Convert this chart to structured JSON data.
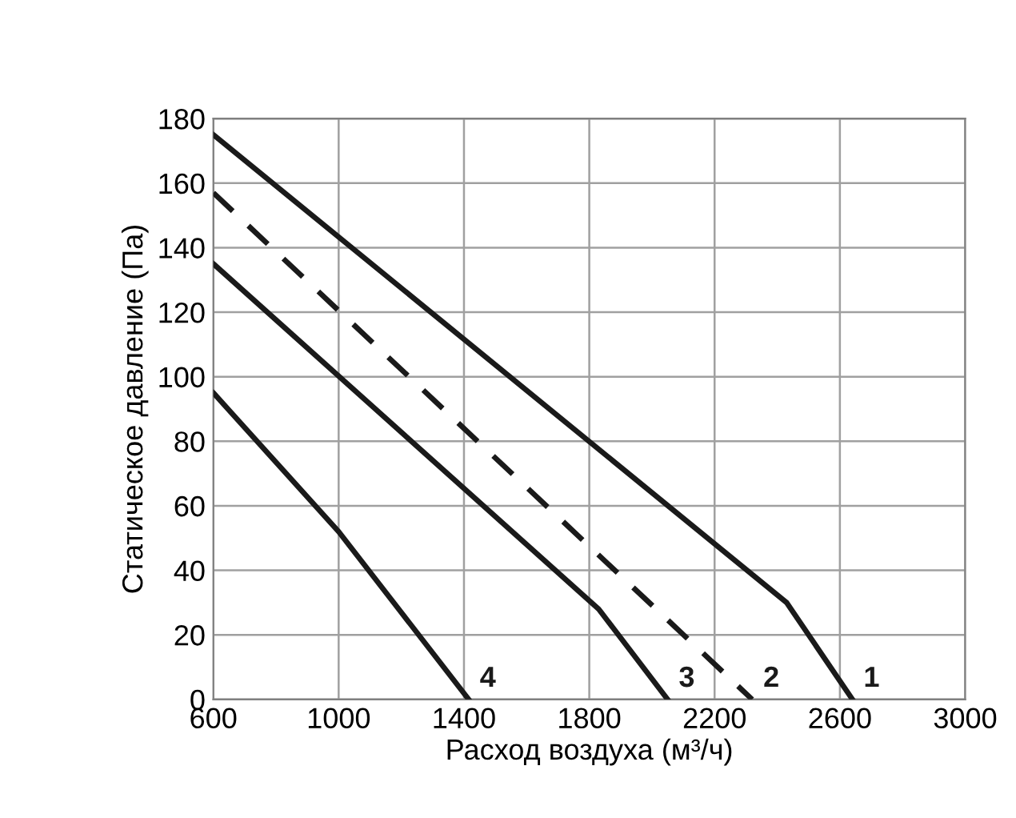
{
  "chart_data": {
    "type": "line",
    "xlabel": "Расход воздуха (м³/ч)",
    "ylabel": "Статическое давление (Па)",
    "series": [
      {
        "name": "1",
        "x": [
          600,
          2430,
          2640
        ],
        "values": [
          175,
          30,
          0
        ],
        "color": "#1a1a1a",
        "line_style": "solid"
      },
      {
        "name": "2",
        "x": [
          600,
          2320
        ],
        "values": [
          157,
          0
        ],
        "color": "#1a1a1a",
        "line_style": "dashed"
      },
      {
        "name": "3",
        "x": [
          600,
          1830,
          2050
        ],
        "values": [
          135,
          28,
          0
        ],
        "color": "#1a1a1a",
        "line_style": "solid"
      },
      {
        "name": "4",
        "x": [
          600,
          1000,
          1415
        ],
        "values": [
          95,
          52,
          0
        ],
        "color": "#1a1a1a",
        "line_style": "solid"
      }
    ],
    "xlim": [
      600,
      3000
    ],
    "xticks": [
      600,
      1000,
      1400,
      1800,
      2200,
      2600,
      3000
    ],
    "ylim": [
      0,
      180
    ],
    "yticks": [
      0,
      20,
      40,
      60,
      80,
      100,
      120,
      140,
      160,
      180
    ],
    "grid": true
  }
}
